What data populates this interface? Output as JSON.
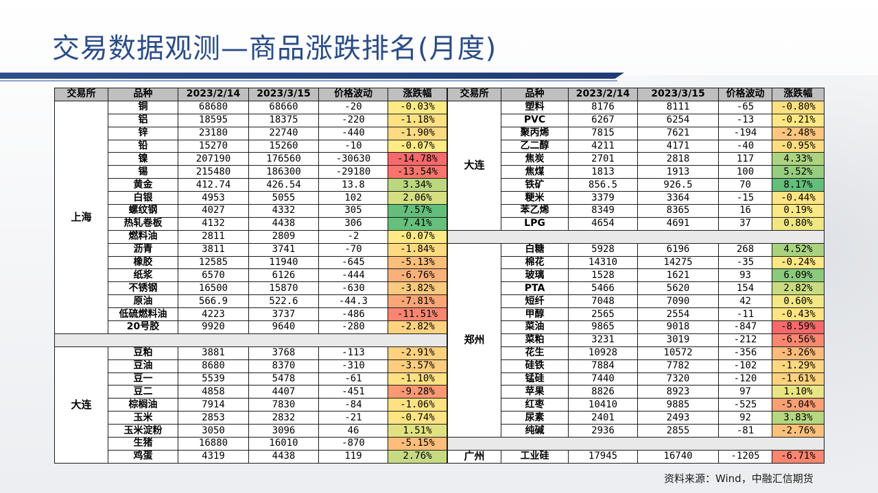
{
  "title": "交易数据观测—商品涨跌排名(月度)",
  "headers": [
    "交易所",
    "品种",
    "2023/2/14",
    "2023/3/15",
    "价格波动",
    "涨跌幅"
  ],
  "left_groups": [
    {
      "exchange": "上海",
      "rows": [
        {
          "name": "铜",
          "p1": "68680",
          "p2": "68660",
          "diff": "-20",
          "pct": "-0.03%",
          "v": -0.03
        },
        {
          "name": "铝",
          "p1": "18595",
          "p2": "18375",
          "diff": "-220",
          "pct": "-1.18%",
          "v": -1.18
        },
        {
          "name": "锌",
          "p1": "23180",
          "p2": "22740",
          "diff": "-440",
          "pct": "-1.90%",
          "v": -1.9
        },
        {
          "name": "铅",
          "p1": "15270",
          "p2": "15260",
          "diff": "-10",
          "pct": "-0.07%",
          "v": -0.07
        },
        {
          "name": "镍",
          "p1": "207190",
          "p2": "176560",
          "diff": "-30630",
          "pct": "-14.78%",
          "v": -14.78
        },
        {
          "name": "锡",
          "p1": "215480",
          "p2": "186300",
          "diff": "-29180",
          "pct": "-13.54%",
          "v": -13.54
        },
        {
          "name": "黄金",
          "p1": "412.74",
          "p2": "426.54",
          "diff": "13.8",
          "pct": "3.34%",
          "v": 3.34
        },
        {
          "name": "白银",
          "p1": "4953",
          "p2": "5055",
          "diff": "102",
          "pct": "2.06%",
          "v": 2.06
        },
        {
          "name": "螺纹钢",
          "p1": "4027",
          "p2": "4332",
          "diff": "305",
          "pct": "7.57%",
          "v": 7.57
        },
        {
          "name": "热轧卷板",
          "p1": "4132",
          "p2": "4438",
          "diff": "306",
          "pct": "7.41%",
          "v": 7.41
        },
        {
          "name": "燃料油",
          "p1": "2811",
          "p2": "2809",
          "diff": "-2",
          "pct": "-0.07%",
          "v": -0.07
        },
        {
          "name": "沥青",
          "p1": "3811",
          "p2": "3741",
          "diff": "-70",
          "pct": "-1.84%",
          "v": -1.84
        },
        {
          "name": "橡胶",
          "p1": "12585",
          "p2": "11940",
          "diff": "-645",
          "pct": "-5.13%",
          "v": -5.13
        },
        {
          "name": "纸浆",
          "p1": "6570",
          "p2": "6126",
          "diff": "-444",
          "pct": "-6.76%",
          "v": -6.76
        },
        {
          "name": "不锈钢",
          "p1": "16500",
          "p2": "15870",
          "diff": "-630",
          "pct": "-3.82%",
          "v": -3.82
        },
        {
          "name": "原油",
          "p1": "566.9",
          "p2": "522.6",
          "diff": "-44.3",
          "pct": "-7.81%",
          "v": -7.81
        },
        {
          "name": "低硫燃料油",
          "p1": "4223",
          "p2": "3737",
          "diff": "-486",
          "pct": "-11.51%",
          "v": -11.51
        },
        {
          "name": "20号胶",
          "p1": "9920",
          "p2": "9640",
          "diff": "-280",
          "pct": "-2.82%",
          "v": -2.82
        }
      ]
    },
    {
      "exchange": "大连",
      "rows": [
        {
          "name": "豆粕",
          "p1": "3881",
          "p2": "3768",
          "diff": "-113",
          "pct": "-2.91%",
          "v": -2.91
        },
        {
          "name": "豆油",
          "p1": "8680",
          "p2": "8370",
          "diff": "-310",
          "pct": "-3.57%",
          "v": -3.57
        },
        {
          "name": "豆一",
          "p1": "5539",
          "p2": "5478",
          "diff": "-61",
          "pct": "-1.10%",
          "v": -1.1
        },
        {
          "name": "豆二",
          "p1": "4858",
          "p2": "4407",
          "diff": "-451",
          "pct": "-9.28%",
          "v": -9.28
        },
        {
          "name": "棕榈油",
          "p1": "7914",
          "p2": "7830",
          "diff": "-84",
          "pct": "-1.06%",
          "v": -1.06
        },
        {
          "name": "玉米",
          "p1": "2853",
          "p2": "2832",
          "diff": "-21",
          "pct": "-0.74%",
          "v": -0.74
        },
        {
          "name": "玉米淀粉",
          "p1": "3050",
          "p2": "3096",
          "diff": "46",
          "pct": "1.51%",
          "v": 1.51
        },
        {
          "name": "生猪",
          "p1": "16880",
          "p2": "16010",
          "diff": "-870",
          "pct": "-5.15%",
          "v": -5.15
        },
        {
          "name": "鸡蛋",
          "p1": "4319",
          "p2": "4438",
          "diff": "119",
          "pct": "2.76%",
          "v": 2.76
        }
      ]
    }
  ],
  "right_groups": [
    {
      "exchange": "大连",
      "rows": [
        {
          "name": "塑料",
          "p1": "8176",
          "p2": "8111",
          "diff": "-65",
          "pct": "-0.80%",
          "v": -0.8
        },
        {
          "name": "PVC",
          "p1": "6267",
          "p2": "6254",
          "diff": "-13",
          "pct": "-0.21%",
          "v": -0.21
        },
        {
          "name": "聚丙烯",
          "p1": "7815",
          "p2": "7621",
          "diff": "-194",
          "pct": "-2.48%",
          "v": -2.48
        },
        {
          "name": "乙二醇",
          "p1": "4211",
          "p2": "4171",
          "diff": "-40",
          "pct": "-0.95%",
          "v": -0.95
        },
        {
          "name": "焦炭",
          "p1": "2701",
          "p2": "2818",
          "diff": "117",
          "pct": "4.33%",
          "v": 4.33
        },
        {
          "name": "焦煤",
          "p1": "1813",
          "p2": "1913",
          "diff": "100",
          "pct": "5.52%",
          "v": 5.52
        },
        {
          "name": "铁矿",
          "p1": "856.5",
          "p2": "926.5",
          "diff": "70",
          "pct": "8.17%",
          "v": 8.17
        },
        {
          "name": "粳米",
          "p1": "3379",
          "p2": "3364",
          "diff": "-15",
          "pct": "-0.44%",
          "v": -0.44
        },
        {
          "name": "苯乙烯",
          "p1": "8349",
          "p2": "8365",
          "diff": "16",
          "pct": "0.19%",
          "v": 0.19
        },
        {
          "name": "LPG",
          "p1": "4654",
          "p2": "4691",
          "diff": "37",
          "pct": "0.80%",
          "v": 0.8
        }
      ]
    },
    {
      "exchange": "郑州",
      "rows": [
        {
          "name": "白糖",
          "p1": "5928",
          "p2": "6196",
          "diff": "268",
          "pct": "4.52%",
          "v": 4.52
        },
        {
          "name": "棉花",
          "p1": "14310",
          "p2": "14275",
          "diff": "-35",
          "pct": "-0.24%",
          "v": -0.24
        },
        {
          "name": "玻璃",
          "p1": "1528",
          "p2": "1621",
          "diff": "93",
          "pct": "6.09%",
          "v": 6.09
        },
        {
          "name": "PTA",
          "p1": "5466",
          "p2": "5620",
          "diff": "154",
          "pct": "2.82%",
          "v": 2.82
        },
        {
          "name": "短纤",
          "p1": "7048",
          "p2": "7090",
          "diff": "42",
          "pct": "0.60%",
          "v": 0.6
        },
        {
          "name": "甲醇",
          "p1": "2565",
          "p2": "2554",
          "diff": "-11",
          "pct": "-0.43%",
          "v": -0.43
        },
        {
          "name": "菜油",
          "p1": "9865",
          "p2": "9018",
          "diff": "-847",
          "pct": "-8.59%",
          "v": -8.59
        },
        {
          "name": "菜粕",
          "p1": "3231",
          "p2": "3019",
          "diff": "-212",
          "pct": "-6.56%",
          "v": -6.56
        },
        {
          "name": "花生",
          "p1": "10928",
          "p2": "10572",
          "diff": "-356",
          "pct": "-3.26%",
          "v": -3.26
        },
        {
          "name": "硅铁",
          "p1": "7884",
          "p2": "7782",
          "diff": "-102",
          "pct": "-1.29%",
          "v": -1.29
        },
        {
          "name": "锰硅",
          "p1": "7440",
          "p2": "7320",
          "diff": "-120",
          "pct": "-1.61%",
          "v": -1.61
        },
        {
          "name": "苹果",
          "p1": "8826",
          "p2": "8923",
          "diff": "97",
          "pct": "1.10%",
          "v": 1.1
        },
        {
          "name": "红枣",
          "p1": "10410",
          "p2": "9885",
          "diff": "-525",
          "pct": "-5.04%",
          "v": -5.04
        },
        {
          "name": "尿素",
          "p1": "2401",
          "p2": "2493",
          "diff": "92",
          "pct": "3.83%",
          "v": 3.83
        },
        {
          "name": "纯碱",
          "p1": "2936",
          "p2": "2855",
          "diff": "-81",
          "pct": "-2.76%",
          "v": -2.76
        }
      ]
    },
    {
      "exchange": "广州",
      "rows": [
        {
          "name": "工业硅",
          "p1": "17945",
          "p2": "16740",
          "diff": "-1205",
          "pct": "-6.71%",
          "v": -6.71
        }
      ]
    }
  ],
  "colors": {
    "title": "#2b4c86",
    "header_bg": "#bfbfbf",
    "scale_min": "#f8696b",
    "scale_mid": "#ffeb84",
    "scale_max": "#63be7b"
  },
  "source": "资料来源：Wind，中融汇信期货"
}
